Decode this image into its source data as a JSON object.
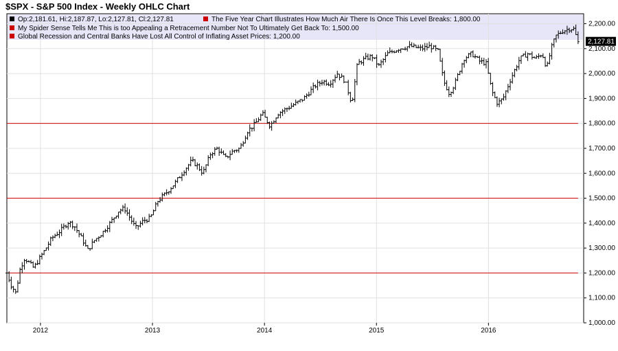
{
  "chart_data": {
    "type": "ohlc",
    "title": "$SPX - S&P 500 Index - Weekly OHLC Chart",
    "ohlc_legend": "Op:2,181.61, Hi:2,187.87, Lo:2,127.81, Cl:2,127.81",
    "last_close_label": "2,127.81",
    "last_close": 2127.81,
    "ylim": [
      1000,
      2240
    ],
    "xlim": [
      2011.7,
      2016.85
    ],
    "y_ticks": [
      1000,
      1100,
      1200,
      1300,
      1400,
      1500,
      1600,
      1700,
      1800,
      1900,
      2000,
      2100,
      2200
    ],
    "y_tick_labels": [
      "1,000.00",
      "1,100.00",
      "1,200.00",
      "1,300.00",
      "1,400.00",
      "1,500.00",
      "1,600.00",
      "1,700.00",
      "1,800.00",
      "1,900.00",
      "2,000.00",
      "2,100.00",
      "2,200.00"
    ],
    "x_ticks": [
      2012,
      2013,
      2014,
      2015,
      2016
    ],
    "x_tick_labels": [
      "2012",
      "2013",
      "2014",
      "2015",
      "2016"
    ],
    "horizontal_lines": [
      {
        "value": 1800,
        "label": "The Five Year Chart Illustrates How Much Air There Is Once This Level Breaks: 1,800.00",
        "color": "#cc0000"
      },
      {
        "value": 1500,
        "label": "My Spider Sense Tells Me This is too Appealing a Retracement Number Not To Ultimately Get Back To: 1,500.00",
        "color": "#cc0000"
      },
      {
        "value": 1200,
        "label": "Global Recession and Central Banks Have Lost All Control of Inflating Asset Prices: 1,200.00",
        "color": "#cc0000"
      }
    ],
    "price_path": [
      [
        2011.7,
        1200
      ],
      [
        2011.74,
        1150
      ],
      [
        2011.78,
        1120
      ],
      [
        2011.82,
        1220
      ],
      [
        2011.86,
        1260
      ],
      [
        2011.9,
        1240
      ],
      [
        2011.94,
        1220
      ],
      [
        2011.98,
        1250
      ],
      [
        2012.05,
        1300
      ],
      [
        2012.1,
        1340
      ],
      [
        2012.18,
        1370
      ],
      [
        2012.25,
        1405
      ],
      [
        2012.3,
        1390
      ],
      [
        2012.38,
        1330
      ],
      [
        2012.42,
        1290
      ],
      [
        2012.48,
        1330
      ],
      [
        2012.55,
        1360
      ],
      [
        2012.62,
        1400
      ],
      [
        2012.7,
        1450
      ],
      [
        2012.75,
        1460
      ],
      [
        2012.8,
        1420
      ],
      [
        2012.85,
        1380
      ],
      [
        2012.92,
        1410
      ],
      [
        2012.98,
        1420
      ],
      [
        2013.05,
        1490
      ],
      [
        2013.12,
        1520
      ],
      [
        2013.2,
        1560
      ],
      [
        2013.28,
        1610
      ],
      [
        2013.35,
        1650
      ],
      [
        2013.4,
        1630
      ],
      [
        2013.45,
        1600
      ],
      [
        2013.52,
        1680
      ],
      [
        2013.58,
        1700
      ],
      [
        2013.65,
        1660
      ],
      [
        2013.72,
        1690
      ],
      [
        2013.78,
        1700
      ],
      [
        2013.85,
        1770
      ],
      [
        2013.92,
        1800
      ],
      [
        2013.98,
        1840
      ],
      [
        2014.05,
        1790
      ],
      [
        2014.12,
        1840
      ],
      [
        2014.2,
        1860
      ],
      [
        2014.28,
        1880
      ],
      [
        2014.35,
        1900
      ],
      [
        2014.45,
        1950
      ],
      [
        2014.52,
        1970
      ],
      [
        2014.58,
        1960
      ],
      [
        2014.65,
        2000
      ],
      [
        2014.72,
        1970
      ],
      [
        2014.78,
        1880
      ],
      [
        2014.83,
        2040
      ],
      [
        2014.9,
        2060
      ],
      [
        2014.96,
        2070
      ],
      [
        2015.02,
        2030
      ],
      [
        2015.1,
        2080
      ],
      [
        2015.2,
        2100
      ],
      [
        2015.3,
        2110
      ],
      [
        2015.4,
        2100
      ],
      [
        2015.48,
        2110
      ],
      [
        2015.55,
        2090
      ],
      [
        2015.6,
        1970
      ],
      [
        2015.65,
        1920
      ],
      [
        2015.7,
        1960
      ],
      [
        2015.78,
        2060
      ],
      [
        2015.85,
        2080
      ],
      [
        2015.92,
        2050
      ],
      [
        2015.98,
        2040
      ],
      [
        2016.03,
        1930
      ],
      [
        2016.08,
        1880
      ],
      [
        2016.13,
        1900
      ],
      [
        2016.2,
        1980
      ],
      [
        2016.28,
        2060
      ],
      [
        2016.35,
        2080
      ],
      [
        2016.42,
        2060
      ],
      [
        2016.48,
        2080
      ],
      [
        2016.52,
        2020
      ],
      [
        2016.56,
        2100
      ],
      [
        2016.6,
        2150
      ],
      [
        2016.66,
        2170
      ],
      [
        2016.72,
        2180
      ],
      [
        2016.76,
        2180
      ],
      [
        2016.8,
        2128
      ]
    ],
    "bar_count": 262,
    "seed": 7
  }
}
